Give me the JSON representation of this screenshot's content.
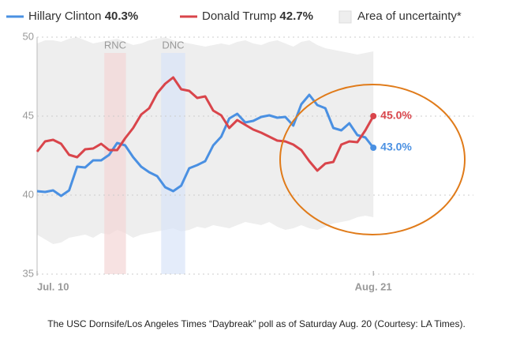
{
  "chart_data": {
    "type": "line",
    "caption": "The USC Dornsife/Los Angeles Times “Daybreak” poll as of Saturday Aug. 20 (Courtesy: LA Times).",
    "x": [
      0,
      1,
      2,
      3,
      4,
      5,
      6,
      7,
      8,
      9,
      10,
      11,
      12,
      13,
      14,
      15,
      16,
      17,
      18,
      19,
      20,
      21,
      22,
      23,
      24,
      25,
      26,
      27,
      28,
      29,
      30,
      31,
      32,
      33,
      34,
      35,
      36,
      37,
      38,
      39,
      40,
      41,
      42
    ],
    "xlim": [
      0,
      54.5
    ],
    "xticks": [
      {
        "value": 0,
        "label": "Jul. 10"
      },
      {
        "value": 42,
        "label": "Aug. 21"
      }
    ],
    "ylim": [
      35,
      50
    ],
    "yticks": [
      35,
      40,
      45,
      50
    ],
    "grid": true,
    "series": [
      {
        "name": "Hillary Clinton",
        "legend_label": "40.3%",
        "end_label": "43.0%",
        "color": "#4a90e2",
        "values": [
          40.25,
          40.2,
          40.3,
          39.95,
          40.3,
          41.8,
          41.75,
          42.2,
          42.2,
          42.55,
          43.3,
          43.15,
          42.4,
          41.8,
          41.45,
          41.2,
          40.5,
          40.25,
          40.6,
          41.7,
          41.9,
          42.15,
          43.15,
          43.7,
          44.85,
          45.15,
          44.6,
          44.7,
          44.95,
          45.05,
          44.9,
          44.95,
          44.4,
          45.75,
          46.35,
          45.7,
          45.5,
          44.25,
          44.1,
          44.55,
          43.8,
          43.65,
          43.0
        ]
      },
      {
        "name": "Donald Trump",
        "legend_label": "42.7%",
        "end_label": "45.0%",
        "color": "#d9454b",
        "values": [
          42.75,
          43.4,
          43.5,
          43.25,
          42.55,
          42.4,
          42.9,
          42.95,
          43.25,
          42.85,
          42.85,
          43.6,
          44.25,
          45.1,
          45.5,
          46.45,
          47.05,
          47.45,
          46.7,
          46.6,
          46.15,
          46.25,
          45.35,
          45.05,
          44.25,
          44.75,
          44.45,
          44.15,
          43.95,
          43.7,
          43.45,
          43.4,
          43.2,
          42.85,
          42.15,
          41.55,
          42.0,
          42.1,
          43.2,
          43.4,
          43.35,
          44.1,
          45.0
        ]
      }
    ],
    "uncertainty": {
      "name": "Area of uncertainty*",
      "color": "#eeeeee",
      "upper": [
        49.6,
        49.8,
        49.8,
        49.7,
        49.9,
        50,
        49.8,
        49.6,
        49.7,
        49.8,
        49.9,
        49.7,
        49.5,
        49.6,
        49.8,
        49.9,
        50,
        49.8,
        49.7,
        49.6,
        49.5,
        49.4,
        49.5,
        49.6,
        49.5,
        49.7,
        49.8,
        49.6,
        49.5,
        49.7,
        49.8,
        49.6,
        49.4,
        49.7,
        49.8,
        49.5,
        49.3,
        49.2,
        49.1,
        49.0,
        48.9,
        49.0,
        49.1
      ],
      "lower": [
        37.5,
        37.2,
        36.9,
        37.0,
        37.3,
        37.4,
        37.5,
        37.3,
        37.6,
        37.5,
        37.8,
        37.6,
        37.3,
        37.5,
        37.6,
        37.7,
        37.8,
        37.9,
        37.7,
        37.8,
        38.0,
        37.9,
        38.1,
        38.0,
        37.9,
        38.1,
        38.3,
        38.2,
        38.1,
        38.3,
        38.0,
        37.8,
        37.9,
        38.1,
        37.9,
        37.8,
        38.0,
        38.2,
        38.3,
        38.4,
        38.6,
        38.7,
        38.6
      ]
    },
    "annotations": [
      {
        "label": "RNC",
        "x": [
          8.4,
          11.1
        ],
        "color": "#f4d6d6"
      },
      {
        "label": "DNC",
        "x": [
          15.5,
          18.5
        ],
        "color": "#d8e4f8"
      }
    ]
  }
}
